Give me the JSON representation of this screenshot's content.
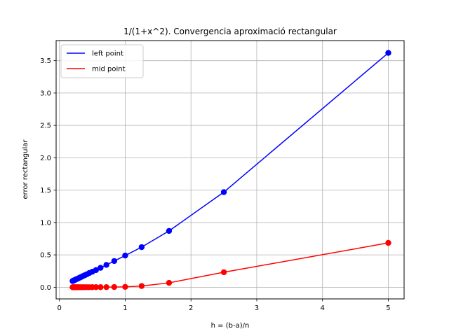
{
  "chart_data": {
    "type": "line",
    "title": "1/(1+x^2). Convergencia aproximació rectangular",
    "xlabel": "h = (b-a)/n",
    "ylabel": "error rectangular",
    "xlim": [
      -0.05,
      5.24
    ],
    "ylim": [
      -0.18,
      3.81
    ],
    "xticks": [
      0,
      1,
      2,
      3,
      4,
      5
    ],
    "xtick_labels": [
      "0",
      "1",
      "2",
      "3",
      "4",
      "5"
    ],
    "yticks": [
      0.0,
      0.5,
      1.0,
      1.5,
      2.0,
      2.5,
      3.0,
      3.5
    ],
    "ytick_labels": [
      "0.0",
      "0.5",
      "1.0",
      "1.5",
      "2.0",
      "2.5",
      "3.0",
      "3.5"
    ],
    "grid": true,
    "legend_position": "upper-left",
    "x": [
      5.0,
      2.5,
      1.6667,
      1.25,
      1.0,
      0.8333,
      0.7143,
      0.625,
      0.5556,
      0.5,
      0.4545,
      0.4167,
      0.3846,
      0.3571,
      0.3333,
      0.3125,
      0.2941,
      0.2778,
      0.2632,
      0.25,
      0.2381,
      0.2273,
      0.2174,
      0.2083,
      0.2
    ],
    "series": [
      {
        "name": "left point",
        "color": "#0000ff",
        "values": [
          3.62,
          1.47,
          0.87,
          0.62,
          0.49,
          0.405,
          0.345,
          0.3,
          0.265,
          0.24,
          0.22,
          0.2,
          0.185,
          0.172,
          0.16,
          0.15,
          0.141,
          0.133,
          0.126,
          0.12,
          0.114,
          0.109,
          0.104,
          0.1,
          0.096
        ]
      },
      {
        "name": "mid point",
        "color": "#ff0000",
        "values": [
          0.685,
          0.232,
          0.068,
          0.019,
          0.006,
          0.003,
          0.002,
          0.001,
          0.001,
          0.001,
          0.0005,
          0.0005,
          0.0004,
          0.0003,
          0.0003,
          0.0002,
          0.0002,
          0.0002,
          0.0001,
          0.0001,
          0.0001,
          0.0001,
          0.0001,
          0.0001,
          0.0001
        ]
      }
    ]
  }
}
